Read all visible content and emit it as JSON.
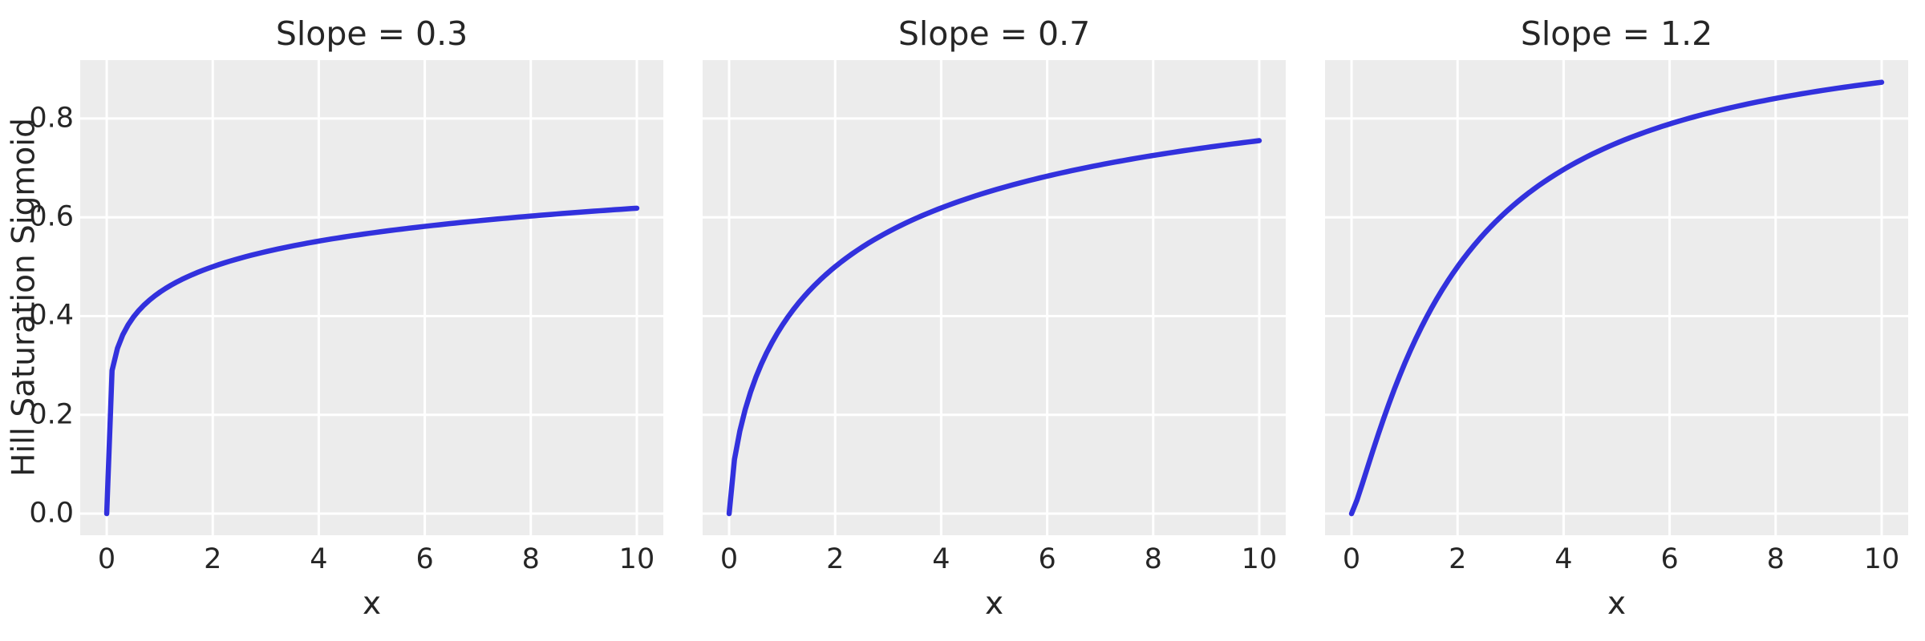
{
  "figure": {
    "ylabel": "Hill Saturation Sigmoid",
    "xlabel": "x"
  },
  "chart_data": {
    "type": "line",
    "layout": "1x3 panels, shared y axis, grid on, no legend",
    "function": "hill_saturation: y = x^slope / (x^slope + K^slope)",
    "half_saturation_K": 2,
    "x_range": [
      0,
      10
    ],
    "n_points": 100,
    "xlim": [
      -0.5,
      10.5
    ],
    "ylim": [
      -0.0437,
      0.9183
    ],
    "xticks": {
      "values": [
        0,
        2,
        4,
        6,
        8,
        10
      ],
      "labels": [
        "0",
        "2",
        "4",
        "6",
        "8",
        "10"
      ]
    },
    "yticks": {
      "values": [
        0.0,
        0.2,
        0.4,
        0.6,
        0.8
      ],
      "labels": [
        "0.0",
        "0.2",
        "0.4",
        "0.6",
        "0.8"
      ]
    },
    "panels": [
      {
        "title": "Slope = 0.3",
        "slope": 0.3,
        "xlabel": "x",
        "value_at_x10": 0.619
      },
      {
        "title": "Slope = 0.7",
        "slope": 0.7,
        "xlabel": "x",
        "value_at_x10": 0.755
      },
      {
        "title": "Slope = 1.2",
        "slope": 1.2,
        "xlabel": "x",
        "value_at_x10": 0.874
      }
    ],
    "colors": {
      "line": "#3231dd",
      "axes_background": "#ececec",
      "grid": "#ffffff",
      "text": "#262626",
      "figure_background": "#ffffff"
    }
  }
}
